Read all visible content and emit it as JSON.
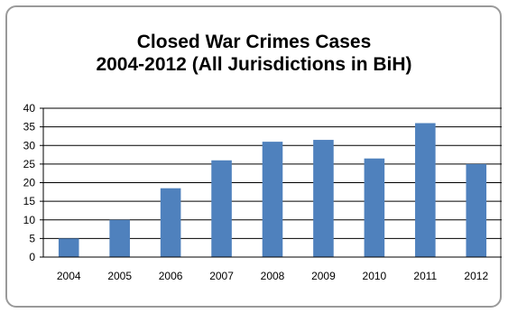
{
  "chart_data": {
    "type": "bar",
    "title_line1": "Closed War Crimes Cases",
    "title_line2": "2004-2012 (All Jurisdictions in BiH)",
    "categories": [
      "2004",
      "2005",
      "2006",
      "2007",
      "2008",
      "2009",
      "2010",
      "2011",
      "2012"
    ],
    "values": [
      5,
      10,
      18.5,
      26,
      31,
      31.5,
      26.5,
      36,
      25
    ],
    "ylim": [
      0,
      40
    ],
    "yticks": [
      0,
      5,
      10,
      15,
      20,
      25,
      30,
      35,
      40
    ],
    "grid": true,
    "legend": "none",
    "bar_color": "#4f81bd",
    "xlabel": "",
    "ylabel": ""
  }
}
